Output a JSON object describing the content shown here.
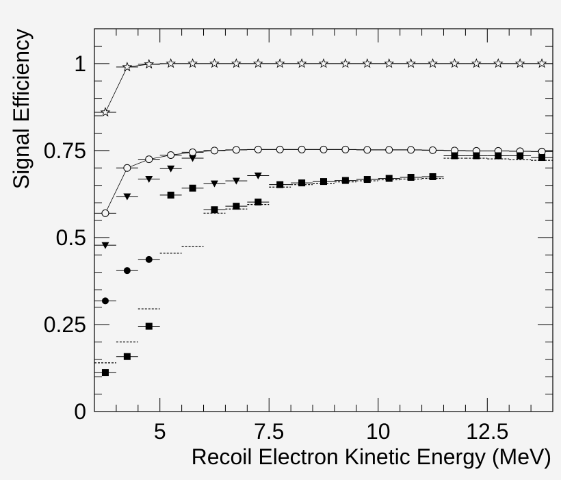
{
  "chart_data": {
    "type": "scatter",
    "xlabel": "Recoil Electron Kinetic Energy (MeV)",
    "ylabel": "Signal Efficiency",
    "xlim": [
      3.5,
      14.0
    ],
    "ylim": [
      0,
      1.1
    ],
    "x_ticks": [
      5,
      7.5,
      10,
      12.5
    ],
    "x_tick_labels": [
      "5",
      "7.5",
      "10",
      "12.5"
    ],
    "y_ticks": [
      0,
      0.25,
      0.5,
      0.75,
      1
    ],
    "y_tick_labels": [
      "0",
      "0.25",
      "0.5",
      "0.75",
      "1"
    ],
    "bin_width": 0.5,
    "series": [
      {
        "marker": "open-star",
        "x": [
          3.75,
          4.25,
          4.75,
          5.25,
          5.75,
          6.25,
          6.75,
          7.25,
          7.75,
          8.25,
          8.75,
          9.25,
          9.75,
          10.25,
          10.75,
          11.25,
          11.75,
          12.25,
          12.75,
          13.25,
          13.75
        ],
        "y": [
          0.86,
          0.99,
          0.998,
          1.0,
          1.0,
          1.0,
          1.0,
          1.0,
          1.0,
          1.0,
          1.0,
          1.0,
          1.0,
          1.0,
          1.0,
          1.0,
          1.0,
          1.0,
          1.0,
          1.0,
          1.0
        ],
        "connected": true
      },
      {
        "marker": "open-circle",
        "x": [
          3.75,
          4.25,
          4.75,
          5.25,
          5.75,
          6.25,
          6.75,
          7.25,
          7.75,
          8.25,
          8.75,
          9.25,
          9.75,
          10.25,
          10.75,
          11.25,
          11.75,
          12.25,
          12.75,
          13.25,
          13.75
        ],
        "y": [
          0.57,
          0.7,
          0.725,
          0.737,
          0.745,
          0.75,
          0.752,
          0.753,
          0.753,
          0.753,
          0.753,
          0.753,
          0.752,
          0.752,
          0.752,
          0.751,
          0.75,
          0.749,
          0.749,
          0.748,
          0.747
        ],
        "connected": true
      },
      {
        "marker": "filled-triangle-down",
        "x": [
          3.75,
          4.25,
          4.75,
          5.25,
          5.75,
          6.25,
          6.75,
          7.25
        ],
        "y": [
          0.478,
          0.618,
          0.668,
          0.698,
          0.728,
          0.655,
          0.663,
          0.678
        ]
      },
      {
        "marker": "filled-circle",
        "x": [
          3.75,
          4.25,
          4.75
        ],
        "y": [
          0.318,
          0.405,
          0.437
        ]
      },
      {
        "marker": "filled-square",
        "x": [
          3.75,
          4.25,
          4.75,
          5.25,
          5.75,
          6.25,
          6.75,
          7.25,
          7.75,
          8.25,
          8.75,
          9.25,
          9.75,
          10.25,
          10.75,
          11.25,
          11.75,
          12.25,
          12.75,
          13.25,
          13.75
        ],
        "y": [
          0.112,
          0.158,
          0.245,
          0.622,
          0.642,
          0.58,
          0.59,
          0.602,
          0.652,
          0.657,
          0.661,
          0.664,
          0.667,
          0.67,
          0.673,
          0.675,
          0.735,
          0.735,
          0.735,
          0.735,
          0.73
        ]
      },
      {
        "marker": "dotted-step",
        "x": [
          3.75,
          4.25,
          4.75,
          5.25,
          5.75,
          6.25,
          6.75,
          7.25,
          7.75,
          8.25,
          8.75,
          9.25,
          9.75,
          10.25,
          10.75,
          11.25,
          11.75,
          12.25,
          12.75,
          13.25,
          13.75
        ],
        "y": [
          0.14,
          0.2,
          0.295,
          0.455,
          0.475,
          0.57,
          0.582,
          0.595,
          0.645,
          0.652,
          0.656,
          0.66,
          0.663,
          0.666,
          0.668,
          0.67,
          0.728,
          0.728,
          0.726,
          0.724,
          0.722
        ]
      }
    ]
  }
}
